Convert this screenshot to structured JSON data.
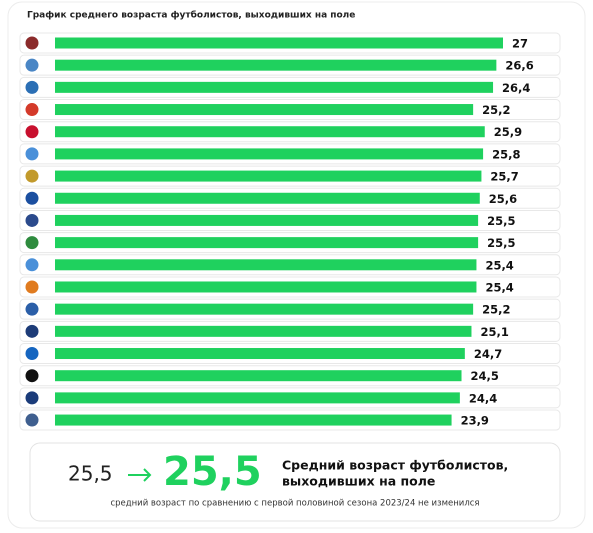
{
  "chart_data": {
    "type": "hbar",
    "title": "График среднего возраста футболистов, выходивших на поле",
    "values": [
      27,
      26.6,
      26.4,
      25.2,
      25.9,
      25.8,
      25.7,
      25.6,
      25.5,
      25.5,
      25.4,
      25.4,
      25.2,
      25.1,
      24.7,
      24.5,
      24.4,
      23.9
    ],
    "value_labels": [
      "27",
      "26,6",
      "26,4",
      "25,2",
      "25,9",
      "25,8",
      "25,7",
      "25,6",
      "25,5",
      "25,5",
      "25,4",
      "25,4",
      "25,2",
      "25,1",
      "24,7",
      "24,5",
      "24,4",
      "23,9"
    ],
    "color": "#1fd15e"
  },
  "summary": {
    "previous": "25,5",
    "current": "25,5",
    "label": [
      "Средний возраст футболистов,",
      "выходивших на поле"
    ],
    "note": "средний возраст по сравнению с первой половиной сезона 2023/24 не изменился"
  }
}
